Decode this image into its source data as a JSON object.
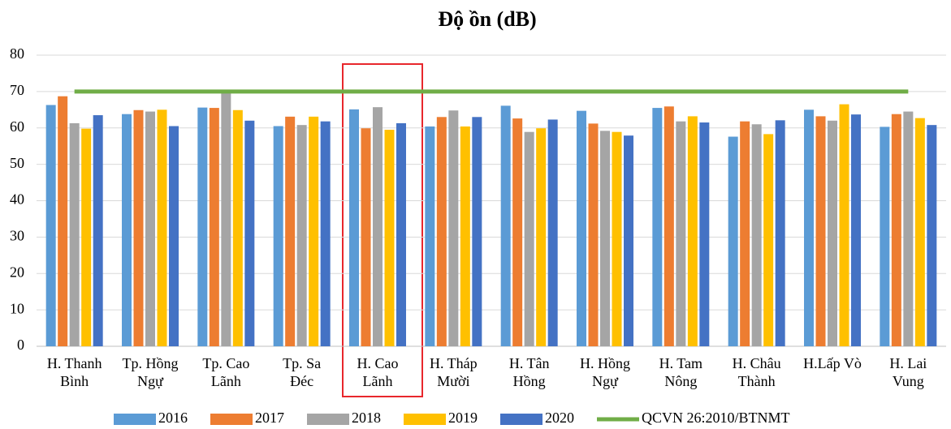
{
  "chart_data": {
    "type": "bar",
    "title": "Độ ồn (dB)",
    "categories": [
      "H. Thanh\nBình",
      "Tp. Hồng\nNgự",
      "Tp. Cao\nLãnh",
      "Tp. Sa\nĐéc",
      "H. Cao\nLãnh",
      "H. Tháp\nMười",
      "H. Tân\nHồng",
      "H. Hồng\nNgự",
      "H. Tam\nNông",
      "H. Châu\nThành",
      "H.Lấp Vò",
      "H. Lai\nVung"
    ],
    "series": [
      {
        "name": "2016",
        "color": "#5b9bd5",
        "values": [
          66.3,
          63.8,
          65.6,
          60.5,
          65.1,
          60.4,
          66.1,
          64.7,
          65.5,
          57.6,
          65.0,
          60.3
        ]
      },
      {
        "name": "2017",
        "color": "#ed7d31",
        "values": [
          68.7,
          64.9,
          65.5,
          63.1,
          59.9,
          63.0,
          62.6,
          61.2,
          65.9,
          61.8,
          63.2,
          63.8
        ]
      },
      {
        "name": "2018",
        "color": "#a5a5a5",
        "values": [
          61.3,
          64.5,
          70.0,
          60.8,
          65.7,
          64.8,
          58.9,
          59.2,
          61.8,
          61.0,
          62.0,
          64.5
        ]
      },
      {
        "name": "2019",
        "color": "#ffc000",
        "values": [
          59.8,
          65.0,
          64.9,
          63.1,
          59.5,
          60.4,
          59.9,
          58.9,
          63.2,
          58.3,
          66.5,
          62.7
        ]
      },
      {
        "name": "2020",
        "color": "#4472c4",
        "values": [
          63.5,
          60.5,
          62.0,
          61.8,
          61.3,
          63.0,
          62.3,
          57.9,
          61.5,
          62.1,
          63.7,
          60.8
        ]
      },
      {
        "name": "QCVN 26:2010/BTNMT",
        "color": "#70ad47",
        "type": "line",
        "values": [
          70,
          70,
          70,
          70,
          70,
          70,
          70,
          70,
          70,
          70,
          70,
          70
        ]
      }
    ],
    "ylim": [
      0,
      80
    ],
    "yticks": [
      0,
      10,
      20,
      30,
      40,
      50,
      60,
      70,
      80
    ],
    "grid": true,
    "legend": "bottom"
  }
}
